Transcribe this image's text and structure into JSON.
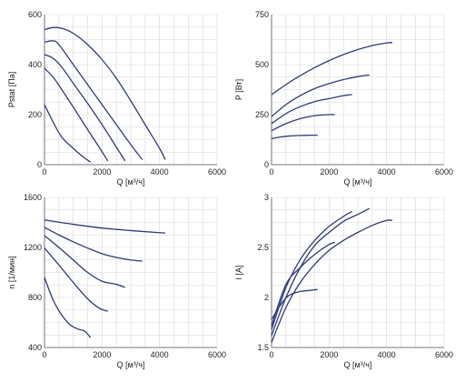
{
  "chart_data": [
    {
      "type": "line",
      "xlabel": "Q [м³/ч]",
      "ylabel": "Pstat [Па]",
      "xlim": [
        0,
        6000
      ],
      "ylim": [
        0,
        600
      ],
      "xticks": [
        0,
        2000,
        4000,
        6000
      ],
      "yticks": [
        0,
        200,
        400,
        600
      ],
      "grid": true,
      "series": [
        {
          "values": [
            [
              0,
              540
            ],
            [
              300,
              548
            ],
            [
              600,
              545
            ],
            [
              1000,
              525
            ],
            [
              1500,
              480
            ],
            [
              2000,
              420
            ],
            [
              2500,
              345
            ],
            [
              3000,
              255
            ],
            [
              3500,
              160
            ],
            [
              4000,
              65
            ],
            [
              4200,
              20
            ]
          ]
        },
        {
          "values": [
            [
              0,
              490
            ],
            [
              300,
              495
            ],
            [
              500,
              480
            ],
            [
              1000,
              400
            ],
            [
              1500,
              320
            ],
            [
              2000,
              240
            ],
            [
              2500,
              160
            ],
            [
              3000,
              80
            ],
            [
              3400,
              20
            ]
          ]
        },
        {
          "values": [
            [
              0,
              440
            ],
            [
              300,
              425
            ],
            [
              600,
              390
            ],
            [
              1000,
              325
            ],
            [
              1500,
              245
            ],
            [
              2000,
              160
            ],
            [
              2500,
              70
            ],
            [
              2800,
              15
            ]
          ]
        },
        {
          "values": [
            [
              0,
              385
            ],
            [
              300,
              350
            ],
            [
              600,
              300
            ],
            [
              1000,
              230
            ],
            [
              1500,
              140
            ],
            [
              1900,
              70
            ],
            [
              2200,
              15
            ]
          ]
        },
        {
          "values": [
            [
              0,
              240
            ],
            [
              300,
              170
            ],
            [
              600,
              110
            ],
            [
              1000,
              65
            ],
            [
              1300,
              35
            ],
            [
              1600,
              10
            ]
          ]
        }
      ]
    },
    {
      "type": "line",
      "xlabel": "Q [м³/ч]",
      "ylabel": "P [Вт]",
      "xlim": [
        0,
        6000
      ],
      "ylim": [
        0,
        750
      ],
      "xticks": [
        0,
        2000,
        4000,
        6000
      ],
      "yticks": [
        0,
        250,
        500,
        750
      ],
      "grid": true,
      "series": [
        {
          "values": [
            [
              0,
              350
            ],
            [
              500,
              400
            ],
            [
              1000,
              445
            ],
            [
              1500,
              485
            ],
            [
              2000,
              520
            ],
            [
              2500,
              550
            ],
            [
              3000,
              575
            ],
            [
              3500,
              595
            ],
            [
              4000,
              608
            ],
            [
              4200,
              610
            ]
          ]
        },
        {
          "values": [
            [
              0,
              240
            ],
            [
              500,
              300
            ],
            [
              1000,
              345
            ],
            [
              1500,
              380
            ],
            [
              2000,
              405
            ],
            [
              2500,
              425
            ],
            [
              3000,
              440
            ],
            [
              3400,
              448
            ]
          ]
        },
        {
          "values": [
            [
              0,
              205
            ],
            [
              500,
              255
            ],
            [
              1000,
              290
            ],
            [
              1500,
              315
            ],
            [
              2000,
              330
            ],
            [
              2500,
              345
            ],
            [
              2800,
              350
            ]
          ]
        },
        {
          "values": [
            [
              0,
              170
            ],
            [
              500,
              205
            ],
            [
              1000,
              230
            ],
            [
              1500,
              245
            ],
            [
              2000,
              250
            ],
            [
              2200,
              250
            ]
          ]
        },
        {
          "values": [
            [
              0,
              130
            ],
            [
              300,
              138
            ],
            [
              600,
              143
            ],
            [
              1000,
              146
            ],
            [
              1300,
              147
            ],
            [
              1600,
              147
            ]
          ]
        }
      ]
    },
    {
      "type": "line",
      "xlabel": "Q [м³/ч]",
      "ylabel": "n [1/мин]",
      "xlim": [
        0,
        6000
      ],
      "ylim": [
        400,
        1600
      ],
      "xticks": [
        0,
        2000,
        4000,
        6000
      ],
      "yticks": [
        400,
        800,
        1200,
        1600
      ],
      "grid": true,
      "series": [
        {
          "values": [
            [
              0,
              1420
            ],
            [
              1000,
              1385
            ],
            [
              2000,
              1355
            ],
            [
              3000,
              1335
            ],
            [
              4000,
              1318
            ],
            [
              4200,
              1315
            ]
          ]
        },
        {
          "values": [
            [
              0,
              1360
            ],
            [
              500,
              1300
            ],
            [
              1000,
              1245
            ],
            [
              1500,
              1195
            ],
            [
              2000,
              1150
            ],
            [
              2500,
              1120
            ],
            [
              3000,
              1100
            ],
            [
              3400,
              1090
            ]
          ]
        },
        {
          "values": [
            [
              0,
              1295
            ],
            [
              500,
              1200
            ],
            [
              1000,
              1100
            ],
            [
              1500,
              1000
            ],
            [
              2000,
              930
            ],
            [
              2500,
              905
            ],
            [
              2800,
              880
            ]
          ]
        },
        {
          "values": [
            [
              0,
              1195
            ],
            [
              500,
              1060
            ],
            [
              1000,
              920
            ],
            [
              1500,
              790
            ],
            [
              1900,
              715
            ],
            [
              2200,
              690
            ]
          ]
        },
        {
          "values": [
            [
              0,
              960
            ],
            [
              300,
              780
            ],
            [
              600,
              660
            ],
            [
              900,
              580
            ],
            [
              1200,
              545
            ],
            [
              1400,
              530
            ],
            [
              1600,
              480
            ]
          ]
        }
      ]
    },
    {
      "type": "line",
      "xlabel": "Q [м³/ч]",
      "ylabel": "I [A]",
      "xlim": [
        0,
        6000
      ],
      "ylim": [
        1.5,
        3
      ],
      "xticks": [
        0,
        2000,
        4000,
        6000
      ],
      "yticks": [
        1.5,
        2,
        2.5,
        3
      ],
      "grid": true,
      "series": [
        {
          "values": [
            [
              0,
              1.55
            ],
            [
              500,
              1.9
            ],
            [
              1000,
              2.15
            ],
            [
              1500,
              2.33
            ],
            [
              2000,
              2.47
            ],
            [
              2500,
              2.57
            ],
            [
              3000,
              2.65
            ],
            [
              3500,
              2.72
            ],
            [
              4000,
              2.77
            ],
            [
              4200,
              2.77
            ]
          ]
        },
        {
          "values": [
            [
              0,
              1.62
            ],
            [
              500,
              2.0
            ],
            [
              1000,
              2.3
            ],
            [
              1500,
              2.52
            ],
            [
              2000,
              2.65
            ],
            [
              2500,
              2.76
            ],
            [
              3000,
              2.83
            ],
            [
              3400,
              2.89
            ]
          ]
        },
        {
          "values": [
            [
              0,
              1.68
            ],
            [
              500,
              2.1
            ],
            [
              1000,
              2.38
            ],
            [
              1500,
              2.57
            ],
            [
              2000,
              2.71
            ],
            [
              2500,
              2.81
            ],
            [
              2800,
              2.86
            ]
          ]
        },
        {
          "values": [
            [
              0,
              1.72
            ],
            [
              500,
              2.13
            ],
            [
              1000,
              2.3
            ],
            [
              1500,
              2.43
            ],
            [
              2000,
              2.53
            ],
            [
              2200,
              2.55
            ]
          ]
        },
        {
          "values": [
            [
              0,
              1.78
            ],
            [
              300,
              1.92
            ],
            [
              600,
              2.02
            ],
            [
              1000,
              2.06
            ],
            [
              1300,
              2.07
            ],
            [
              1600,
              2.08
            ]
          ]
        }
      ]
    }
  ],
  "colors": {
    "curve": "#2f3a7a",
    "grid": "#d9d9d9",
    "axis": "#555555"
  }
}
